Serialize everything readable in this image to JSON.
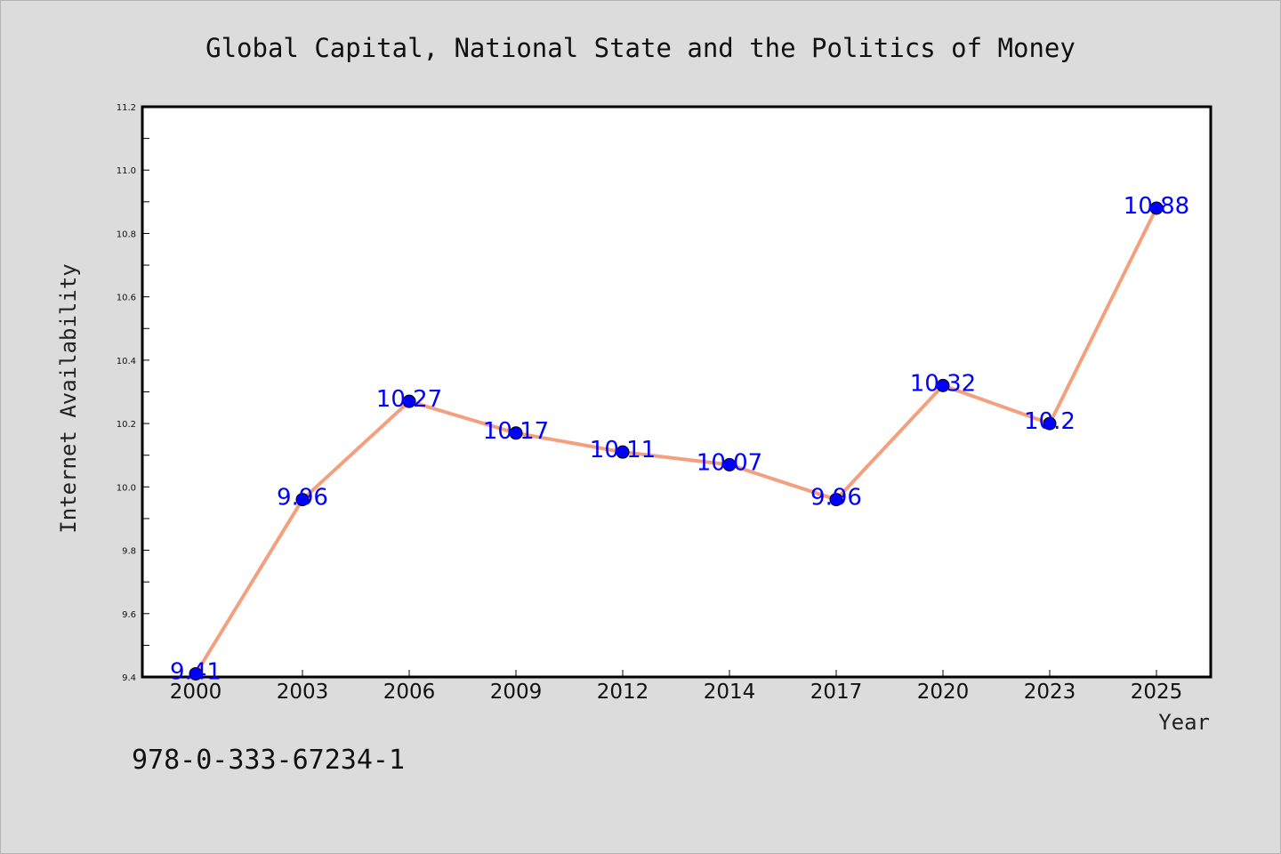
{
  "chart_data": {
    "type": "line",
    "title": "Global Capital, National State and the Politics of Money",
    "xlabel": "Year",
    "ylabel": "Internet Availability",
    "categories": [
      "2000",
      "2003",
      "2006",
      "2009",
      "2012",
      "2014",
      "2017",
      "2020",
      "2023",
      "2025"
    ],
    "series": [
      {
        "values": [
          9.41,
          9.96,
          10.27,
          10.17,
          10.11,
          10.07,
          9.96,
          10.32,
          10.2,
          10.88
        ],
        "data_labels": [
          "9.41",
          "9.96",
          "10.27",
          "10.17",
          "10.11",
          "10.07",
          "9.96",
          "10.32",
          "10.2",
          "10.88"
        ],
        "line_color": "#f4a07f",
        "marker_color": "#0000ff"
      }
    ],
    "ylim": [
      9.4,
      11.2
    ],
    "yticks": [
      "9.4",
      "9.6",
      "9.8",
      "10.0",
      "10.2",
      "10.4",
      "10.6",
      "10.8",
      "11.0",
      "11.2"
    ],
    "grid": false,
    "legend": "none"
  },
  "annotation": {
    "isbn": "978-0-333-67234-1"
  },
  "colors": {
    "background": "#dcdcdc",
    "plot_background": "#ffffff",
    "axis": "#000000"
  }
}
